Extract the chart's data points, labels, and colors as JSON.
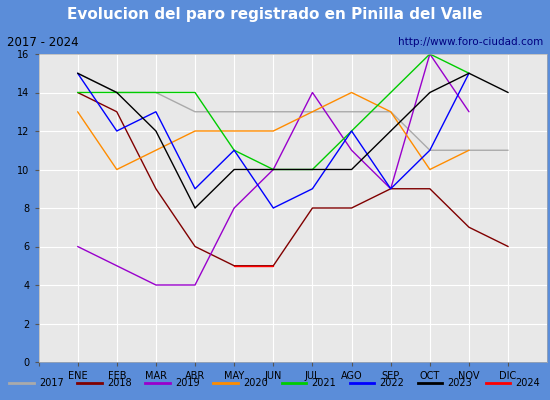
{
  "title": "Evolucion del paro registrado en Pinilla del Valle",
  "subtitle_left": "2017 - 2024",
  "subtitle_right": "http://www.foro-ciudad.com",
  "months": [
    "ENE",
    "FEB",
    "MAR",
    "ABR",
    "MAY",
    "JUN",
    "JUL",
    "AGO",
    "SEP",
    "OCT",
    "NOV",
    "DIC"
  ],
  "ylim": [
    0,
    16
  ],
  "yticks": [
    0,
    2,
    4,
    6,
    8,
    10,
    12,
    14,
    16
  ],
  "series": [
    {
      "year": "2017",
      "values": [
        15,
        14,
        14,
        13,
        13,
        13,
        13,
        13,
        13,
        11,
        11,
        11
      ],
      "color": "#aaaaaa"
    },
    {
      "year": "2018",
      "values": [
        14,
        13,
        9,
        6,
        5,
        5,
        8,
        8,
        9,
        9,
        7,
        6
      ],
      "color": "#800000"
    },
    {
      "year": "2019",
      "values": [
        6,
        5,
        4,
        4,
        8,
        10,
        14,
        11,
        9,
        16,
        13,
        null
      ],
      "color": "#9900cc"
    },
    {
      "year": "2020",
      "values": [
        13,
        10,
        11,
        12,
        12,
        12,
        13,
        14,
        13,
        10,
        11,
        null
      ],
      "color": "#ff8c00"
    },
    {
      "year": "2021",
      "values": [
        14,
        14,
        14,
        14,
        11,
        10,
        10,
        12,
        14,
        16,
        15,
        null
      ],
      "color": "#00cc00"
    },
    {
      "year": "2022",
      "values": [
        15,
        12,
        13,
        9,
        11,
        8,
        9,
        12,
        9,
        11,
        15,
        null
      ],
      "color": "#0000ff"
    },
    {
      "year": "2023",
      "values": [
        15,
        14,
        12,
        8,
        10,
        10,
        10,
        10,
        12,
        14,
        15,
        14
      ],
      "color": "#000000"
    },
    {
      "year": "2024",
      "values": [
        null,
        null,
        null,
        null,
        5,
        5,
        null,
        null,
        null,
        null,
        null,
        null
      ],
      "color": "#ff0000"
    }
  ],
  "title_bg": "#5b8dd9",
  "title_color": "#ffffff",
  "title_fontsize": 11,
  "subtitle_bg": "#f0f0f0",
  "subtitle_border": "#888888",
  "plot_bg": "#e8e8e8",
  "grid_color": "#ffffff",
  "legend_bg": "#f0f0f0",
  "legend_border": "#888888"
}
